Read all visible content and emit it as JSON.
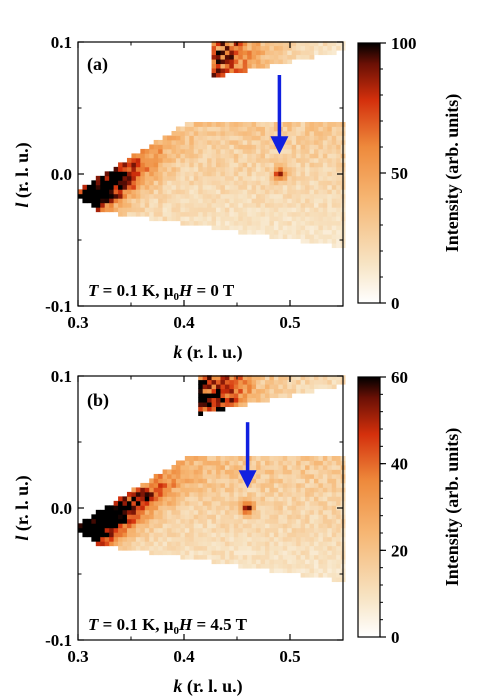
{
  "colors": {
    "low": "#ffffff",
    "mid": "#f4a25a",
    "high_mid": "#e03010",
    "high": "#000000",
    "arrow": "#1020e0"
  },
  "chart_data": [
    {
      "type": "heatmap",
      "panel_label": "(a)",
      "condition": {
        "T": "T",
        "t_value": " = 0.1 K, μ",
        "mu_sub": "0",
        "H": "H",
        "h_value": " = 0 T"
      },
      "xlabel": {
        "var": "k",
        "unit": " (r. l. u.)"
      },
      "ylabel": {
        "var": "l",
        "unit": " (r. l. u.)"
      },
      "xlim": [
        0.3,
        0.55
      ],
      "ylim": [
        -0.1,
        0.1
      ],
      "xticks": [
        {
          "v": 0.3,
          "label": "0.3"
        },
        {
          "v": 0.4,
          "label": "0.4"
        },
        {
          "v": 0.5,
          "label": "0.5"
        }
      ],
      "yticks": [
        {
          "v": -0.1,
          "label": "-0.1"
        },
        {
          "v": 0.0,
          "label": "0.0"
        },
        {
          "v": 0.1,
          "label": "0.1"
        }
      ],
      "colorbar": {
        "label": "Intensity (arb. units)",
        "min": 0,
        "max": 100,
        "ticks": [
          {
            "v": 0,
            "label": "0"
          },
          {
            "v": 50,
            "label": "50"
          },
          {
            "v": 100,
            "label": "100"
          }
        ]
      },
      "peak": {
        "k": 0.49,
        "l": 0.0,
        "intensity": 60
      },
      "arrow": {
        "k": 0.49,
        "l_from": 0.075,
        "l_to": 0.015
      },
      "strong_region_intensity": 100,
      "background_intensity": 35
    },
    {
      "type": "heatmap",
      "panel_label": "(b)",
      "condition": {
        "T": "T",
        "t_value": " = 0.1 K, μ",
        "mu_sub": "0",
        "H": "H",
        "h_value": " = 4.5 T"
      },
      "xlabel": {
        "var": "k",
        "unit": " (r. l. u.)"
      },
      "ylabel": {
        "var": "l",
        "unit": " (r. l. u.)"
      },
      "xlim": [
        0.3,
        0.55
      ],
      "ylim": [
        -0.1,
        0.1
      ],
      "xticks": [
        {
          "v": 0.3,
          "label": "0.3"
        },
        {
          "v": 0.4,
          "label": "0.4"
        },
        {
          "v": 0.5,
          "label": "0.5"
        }
      ],
      "yticks": [
        {
          "v": -0.1,
          "label": "-0.1"
        },
        {
          "v": 0.0,
          "label": "0.0"
        },
        {
          "v": 0.1,
          "label": "0.1"
        }
      ],
      "colorbar": {
        "label": "Intensity (arb. units)",
        "min": 0,
        "max": 60,
        "ticks": [
          {
            "v": 0,
            "label": "0"
          },
          {
            "v": 20,
            "label": "20"
          },
          {
            "v": 40,
            "label": "40"
          },
          {
            "v": 60,
            "label": "60"
          }
        ]
      },
      "peak": {
        "k": 0.46,
        "l": 0.0,
        "intensity": 40
      },
      "arrow": {
        "k": 0.46,
        "l_from": 0.065,
        "l_to": 0.015
      },
      "strong_region_intensity": 60,
      "background_intensity": 22
    }
  ]
}
